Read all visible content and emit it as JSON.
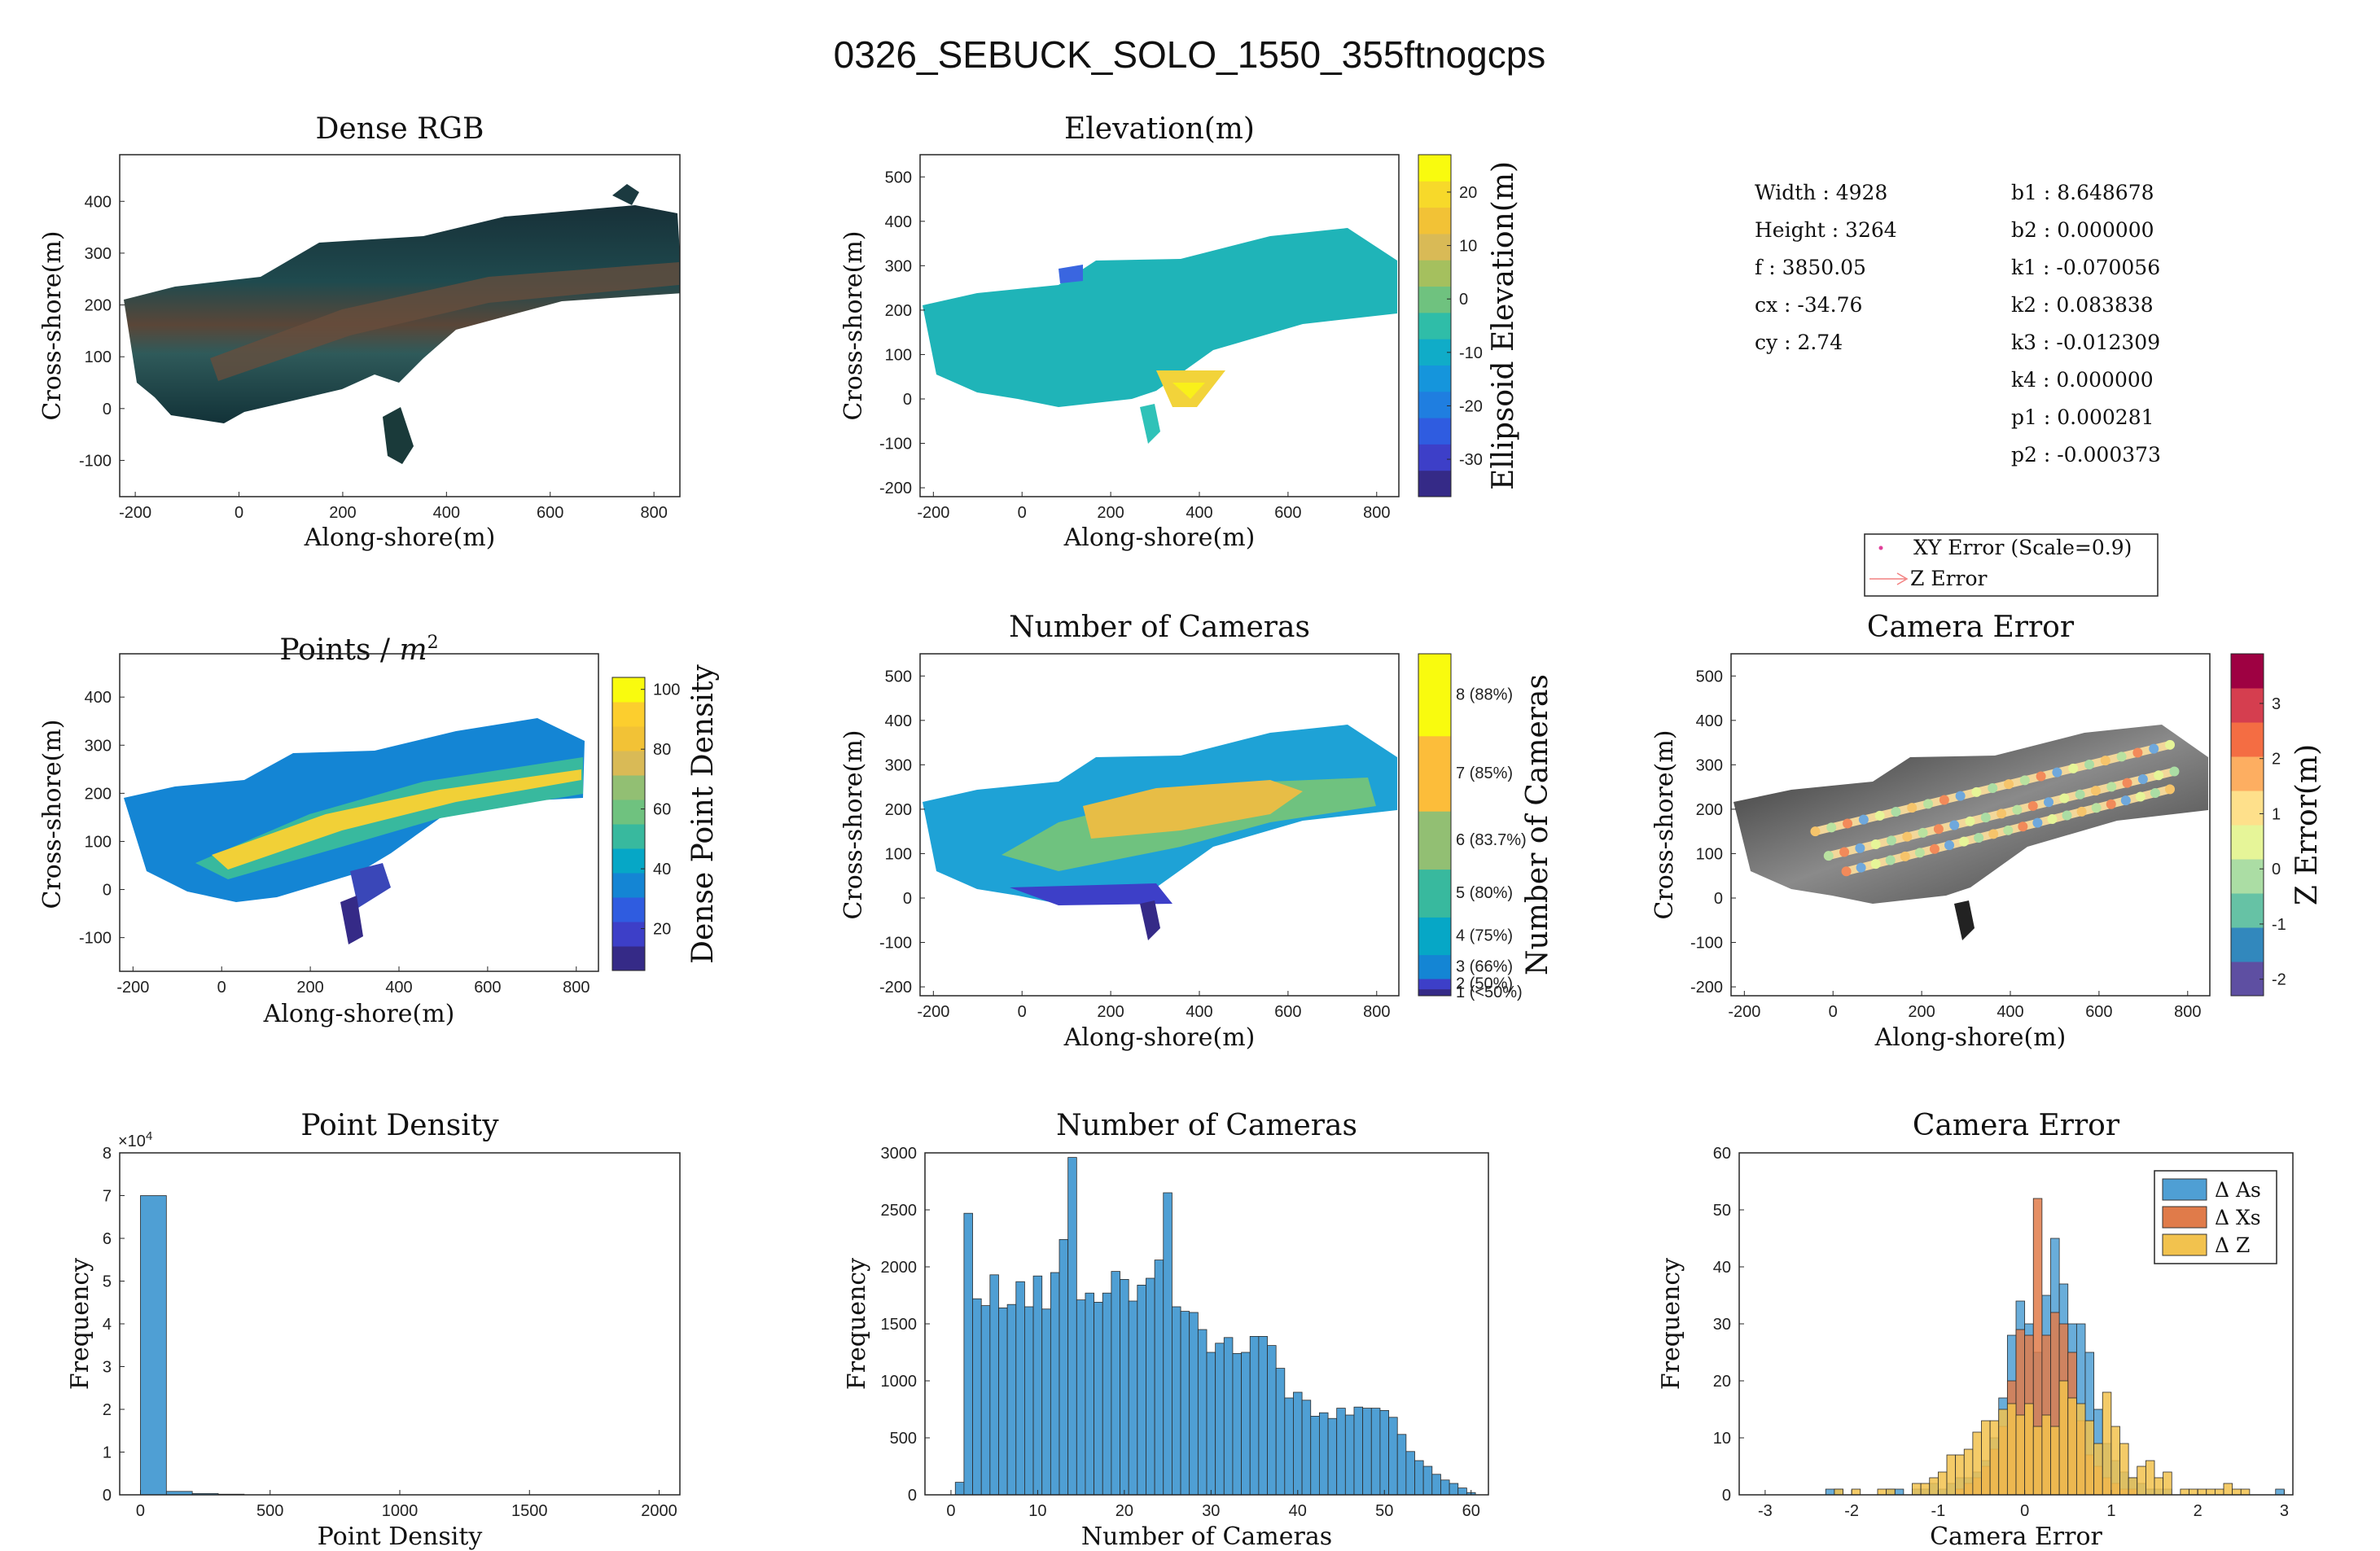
{
  "figure_title": "0326_SEBUCK_SOLO_1550_355ftnogcps",
  "colors": {
    "parula": [
      "#352a87",
      "#0363e1",
      "#1485d4",
      "#06a7c6",
      "#38b99e",
      "#92bf73",
      "#d9ba56",
      "#fcce2e",
      "#f9fb0e"
    ],
    "rdylbu": [
      "#5e4fa2",
      "#3288bd",
      "#66c2a5",
      "#abdda4",
      "#e6f598",
      "#fee08b",
      "#fdae61",
      "#f46d43",
      "#d53e4f",
      "#9e0142"
    ],
    "hist_blue": "#4f9fd4",
    "hist_orange": "#e07b4a",
    "hist_yellow": "#f2c24e"
  },
  "params": {
    "left": [
      "Width : 4928",
      "Height : 3264",
      "f : 3850.05",
      "cx : -34.76",
      "cy : 2.74"
    ],
    "right": [
      "b1 : 8.648678",
      "b2 : 0.000000",
      "k1 : -0.070056",
      "k2 : 0.083838",
      "k3 : -0.012309",
      "k4 : 0.000000",
      "p1 : 0.000281",
      "p2 : -0.000373"
    ]
  },
  "camera_error_legend": {
    "xy": "XY Error (Scale=0.9)",
    "z": "Z Error"
  },
  "chart_data": [
    {
      "id": "dense-rgb",
      "type": "heatmap",
      "title": "Dense RGB",
      "xlabel": "Along-shore(m)",
      "ylabel": "Cross-shore(m)",
      "xlim": [
        -230,
        850
      ],
      "ylim": [
        -170,
        490
      ],
      "xticks": [
        -200,
        0,
        200,
        400,
        600,
        800
      ],
      "yticks": [
        -100,
        0,
        100,
        200,
        300,
        400
      ]
    },
    {
      "id": "elevation",
      "type": "heatmap",
      "title": "Elevation(m)",
      "xlabel": "Along-shore(m)",
      "ylabel": "Cross-shore(m)",
      "xlim": [
        -230,
        850
      ],
      "ylim": [
        -220,
        550
      ],
      "xticks": [
        -200,
        0,
        200,
        400,
        600,
        800
      ],
      "yticks": [
        -200,
        -100,
        0,
        100,
        200,
        300,
        400,
        500
      ],
      "colorbar": {
        "label": "Ellipsoid Elevation(m)",
        "range": [
          -37,
          27
        ],
        "ticks": [
          -30,
          -20,
          -10,
          0,
          10,
          20
        ]
      },
      "values": {
        "beach_ellipsoid_elevation_m": -8,
        "inset_ellipsoid_elevation_m": 22
      }
    },
    {
      "id": "points-per-m2",
      "type": "heatmap",
      "title": "Points / ",
      "title_math": "m",
      "title_sup": "2",
      "xlabel": "Along-shore(m)",
      "ylabel": "Cross-shore(m)",
      "xlim": [
        -230,
        850
      ],
      "ylim": [
        -170,
        490
      ],
      "xticks": [
        -200,
        0,
        200,
        400,
        600,
        800
      ],
      "yticks": [
        -100,
        0,
        100,
        200,
        300,
        400
      ],
      "colorbar": {
        "label": "Dense Point Density",
        "range": [
          6,
          104
        ],
        "ticks": [
          20,
          40,
          60,
          80,
          100
        ]
      }
    },
    {
      "id": "num-cameras-map",
      "type": "heatmap",
      "title": "Number of Cameras",
      "xlabel": "Along-shore(m)",
      "ylabel": "Cross-shore(m)",
      "xlim": [
        -230,
        850
      ],
      "ylim": [
        -220,
        550
      ],
      "xticks": [
        -200,
        0,
        200,
        400,
        600,
        800
      ],
      "yticks": [
        -200,
        -100,
        0,
        100,
        200,
        300,
        400,
        500
      ],
      "colorbar": {
        "label": "Number of Cameras",
        "categories": [
          "1 (<50%)",
          "2 (50%)",
          "3 (66%)",
          "4 (75%)",
          "5 (80%)",
          "6 (83.7%)",
          "7 (85%)",
          "8 (88%)"
        ]
      }
    },
    {
      "id": "camera-error-map",
      "type": "scatter",
      "title": "Camera Error",
      "xlabel": "Along-shore(m)",
      "ylabel": "Cross-shore(m)",
      "xlim": [
        -230,
        850
      ],
      "ylim": [
        -220,
        550
      ],
      "xticks": [
        -200,
        0,
        200,
        400,
        600,
        800
      ],
      "yticks": [
        -200,
        -100,
        0,
        100,
        200,
        300,
        400,
        500
      ],
      "colorbar": {
        "label": "Z Error(m)",
        "range": [
          -2.3,
          3.9
        ],
        "ticks": [
          -2,
          -1,
          0,
          1,
          2,
          3
        ]
      },
      "flight_lines": [
        {
          "x": [
            -40,
            760
          ],
          "y": [
            150,
            345
          ]
        },
        {
          "x": [
            -10,
            770
          ],
          "y": [
            95,
            285
          ]
        },
        {
          "x": [
            30,
            760
          ],
          "y": [
            60,
            245
          ]
        }
      ]
    },
    {
      "id": "point-density-hist",
      "type": "bar",
      "title": "Point Density",
      "xlabel": "Point Density",
      "ylabel": "Frequency",
      "xlim": [
        -80,
        2080
      ],
      "ylim": [
        0,
        80000
      ],
      "xticks": [
        0,
        500,
        1000,
        1500,
        2000
      ],
      "yticks": [
        0,
        10000,
        20000,
        30000,
        40000,
        50000,
        60000,
        70000,
        80000
      ],
      "yticklabels": [
        "0",
        "1",
        "2",
        "3",
        "4",
        "5",
        "6",
        "7",
        "8"
      ],
      "exponent_label": "×10",
      "exponent": "4",
      "bin_width": 100,
      "bin_edges_start": 0,
      "values": [
        70000,
        800,
        300,
        150
      ]
    },
    {
      "id": "num-cameras-hist",
      "type": "bar",
      "title": "Number of Cameras",
      "xlabel": "Number of Cameras",
      "ylabel": "Frequency",
      "xlim": [
        -3,
        62
      ],
      "ylim": [
        0,
        3000
      ],
      "xticks": [
        0,
        10,
        20,
        30,
        40,
        50,
        60
      ],
      "yticks": [
        0,
        500,
        1000,
        1500,
        2000,
        2500,
        3000
      ],
      "bin_width": 1,
      "bin_edges_start": 1,
      "values": [
        110,
        2470,
        1720,
        1660,
        1930,
        1640,
        1670,
        1870,
        1650,
        1920,
        1630,
        1950,
        2240,
        2960,
        1710,
        1770,
        1690,
        1770,
        1960,
        1890,
        1700,
        1840,
        1900,
        2060,
        2650,
        1650,
        1610,
        1600,
        1450,
        1250,
        1330,
        1380,
        1240,
        1250,
        1390,
        1390,
        1310,
        1110,
        850,
        900,
        830,
        690,
        720,
        670,
        760,
        700,
        770,
        760,
        760,
        740,
        680,
        530,
        380,
        300,
        250,
        180,
        130,
        100,
        60,
        20
      ]
    },
    {
      "id": "camera-error-hist",
      "type": "bar",
      "title": "Camera Error",
      "xlabel": "Camera Error",
      "ylabel": "Frequency",
      "xlim": [
        -3.3,
        3.1
      ],
      "ylim": [
        0,
        60
      ],
      "xticks": [
        -3,
        -2,
        -1,
        0,
        1,
        2,
        3
      ],
      "yticks": [
        0,
        10,
        20,
        30,
        40,
        50,
        60
      ],
      "bin_width": 0.1,
      "bin_edges_start": -3.0,
      "legend": [
        "Δ As",
        "Δ Xs",
        "Δ Z"
      ],
      "series": [
        {
          "name": "Δ As",
          "values": [
            0,
            0,
            0,
            0,
            0,
            0,
            0,
            1,
            1,
            0,
            0,
            0,
            0,
            0,
            1,
            1,
            0,
            1,
            1,
            2,
            1,
            2,
            3,
            3,
            4,
            6,
            10,
            17,
            28,
            34,
            30,
            25,
            35,
            45,
            37,
            30,
            30,
            25,
            15,
            9,
            6,
            4,
            3,
            2,
            1,
            1,
            1,
            0,
            0,
            0,
            0,
            0,
            0,
            0,
            0,
            0,
            0,
            0,
            0,
            1
          ]
        },
        {
          "name": "Δ Xs",
          "values": [
            0,
            0,
            0,
            0,
            0,
            0,
            0,
            0,
            0,
            0,
            0,
            0,
            0,
            0,
            0,
            0,
            0,
            0,
            0,
            0,
            0,
            0,
            1,
            2,
            3,
            5,
            8,
            12,
            20,
            29,
            28,
            52,
            28,
            32,
            30,
            25,
            13,
            7,
            5,
            3,
            2,
            1,
            1,
            0,
            0,
            0,
            0,
            0,
            0,
            0,
            0,
            0,
            0,
            0,
            0,
            0,
            0,
            0,
            0,
            0
          ]
        },
        {
          "name": "Δ Z",
          "values": [
            0,
            0,
            0,
            0,
            0,
            0,
            0,
            0,
            1,
            0,
            1,
            0,
            0,
            1,
            1,
            0,
            0,
            2,
            2,
            3,
            4,
            7,
            7,
            8,
            11,
            13,
            13,
            15,
            16,
            14,
            16,
            12,
            14,
            12,
            20,
            17,
            16,
            13,
            9,
            18,
            12,
            9,
            3,
            5,
            6,
            3,
            4,
            0,
            1,
            1,
            1,
            1,
            1,
            2,
            1,
            1,
            0,
            0,
            0,
            0
          ]
        }
      ]
    }
  ]
}
